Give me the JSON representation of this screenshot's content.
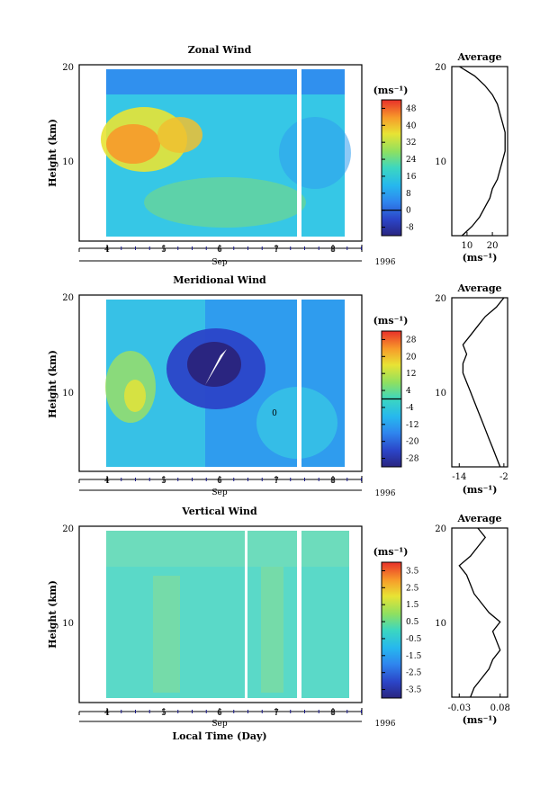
{
  "chart_data": [
    {
      "type": "heatmap",
      "title": "Zonal Wind",
      "ylabel": "Height (km)",
      "y_ticks": [
        "20",
        "10"
      ],
      "ylim": [
        2,
        20
      ],
      "x_ticks": [
        "4",
        "5",
        "6",
        "7",
        "8"
      ],
      "x_month": "Sep",
      "x_year": "1996",
      "colorbar": {
        "unit": "(ms⁻¹)",
        "ticks": [
          "48",
          "40",
          "32",
          "24",
          "16",
          "8",
          "0",
          "-8"
        ],
        "range": [
          -12,
          52
        ],
        "zero_line": 0
      },
      "average": {
        "title": "Average",
        "xunit": "(ms⁻¹)",
        "x_ticks": [
          "10",
          "20"
        ],
        "xlim": [
          4,
          26
        ],
        "height": [
          2,
          3,
          4,
          5,
          6,
          7,
          8,
          9,
          10,
          11,
          12,
          13,
          14,
          15,
          16,
          17,
          18,
          19,
          19.5,
          20
        ],
        "values": [
          8,
          12,
          15,
          17,
          19,
          20,
          22,
          23,
          24,
          25,
          25,
          25,
          24,
          23,
          22,
          20,
          17,
          13,
          10,
          7
        ]
      }
    },
    {
      "type": "heatmap",
      "title": "Meridional Wind",
      "ylabel": "Height (km)",
      "y_ticks": [
        "20",
        "10"
      ],
      "ylim": [
        2,
        20
      ],
      "x_ticks": [
        "4",
        "5",
        "6",
        "7",
        "8"
      ],
      "x_month": "Sep",
      "x_year": "1996",
      "contour_label": "0",
      "colorbar": {
        "unit": "(ms⁻¹)",
        "ticks": [
          "28",
          "20",
          "12",
          "4",
          "-4",
          "-12",
          "-20",
          "-28"
        ],
        "range": [
          -32,
          32
        ],
        "zero_line": 0
      },
      "average": {
        "title": "Average",
        "xunit": "(ms⁻¹)",
        "x_ticks": [
          "-14",
          "-2"
        ],
        "xlim": [
          -16,
          -1
        ],
        "height": [
          2,
          3,
          4,
          5,
          6,
          7,
          8,
          9,
          10,
          11,
          12,
          13,
          14,
          15,
          16,
          17,
          18,
          19,
          20
        ],
        "values": [
          -3,
          -4,
          -5,
          -6,
          -7,
          -8,
          -9,
          -10,
          -11,
          -12,
          -13,
          -13,
          -12,
          -13,
          -11,
          -9,
          -7,
          -4,
          -2
        ]
      }
    },
    {
      "type": "heatmap",
      "title": "Vertical Wind",
      "ylabel": "Height (km)",
      "y_ticks": [
        "20",
        "10"
      ],
      "ylim": [
        2,
        20
      ],
      "x_ticks": [
        "4",
        "5",
        "6",
        "7",
        "8"
      ],
      "x_month": "Sep",
      "x_year": "1996",
      "xlabel": "Local Time (Day)",
      "colorbar": {
        "unit": "(ms⁻¹)",
        "ticks": [
          "3.5",
          "2.5",
          "1.5",
          "0.5",
          "-0.5",
          "-1.5",
          "-2.5",
          "-3.5"
        ],
        "range": [
          -4,
          4
        ]
      },
      "average": {
        "title": "Average",
        "xunit": "(ms⁻¹)",
        "x_ticks": [
          "-0.03",
          "0.08"
        ],
        "xlim": [
          -0.05,
          0.1
        ],
        "height": [
          2,
          3,
          4,
          5,
          6,
          7,
          8,
          9,
          10,
          11,
          12,
          13,
          14,
          15,
          16,
          17,
          18,
          19,
          20
        ],
        "values": [
          0.0,
          0.01,
          0.03,
          0.05,
          0.06,
          0.08,
          0.07,
          0.06,
          0.08,
          0.05,
          0.03,
          0.01,
          0.0,
          -0.01,
          -0.03,
          0.0,
          0.02,
          0.04,
          0.02
        ]
      }
    }
  ]
}
